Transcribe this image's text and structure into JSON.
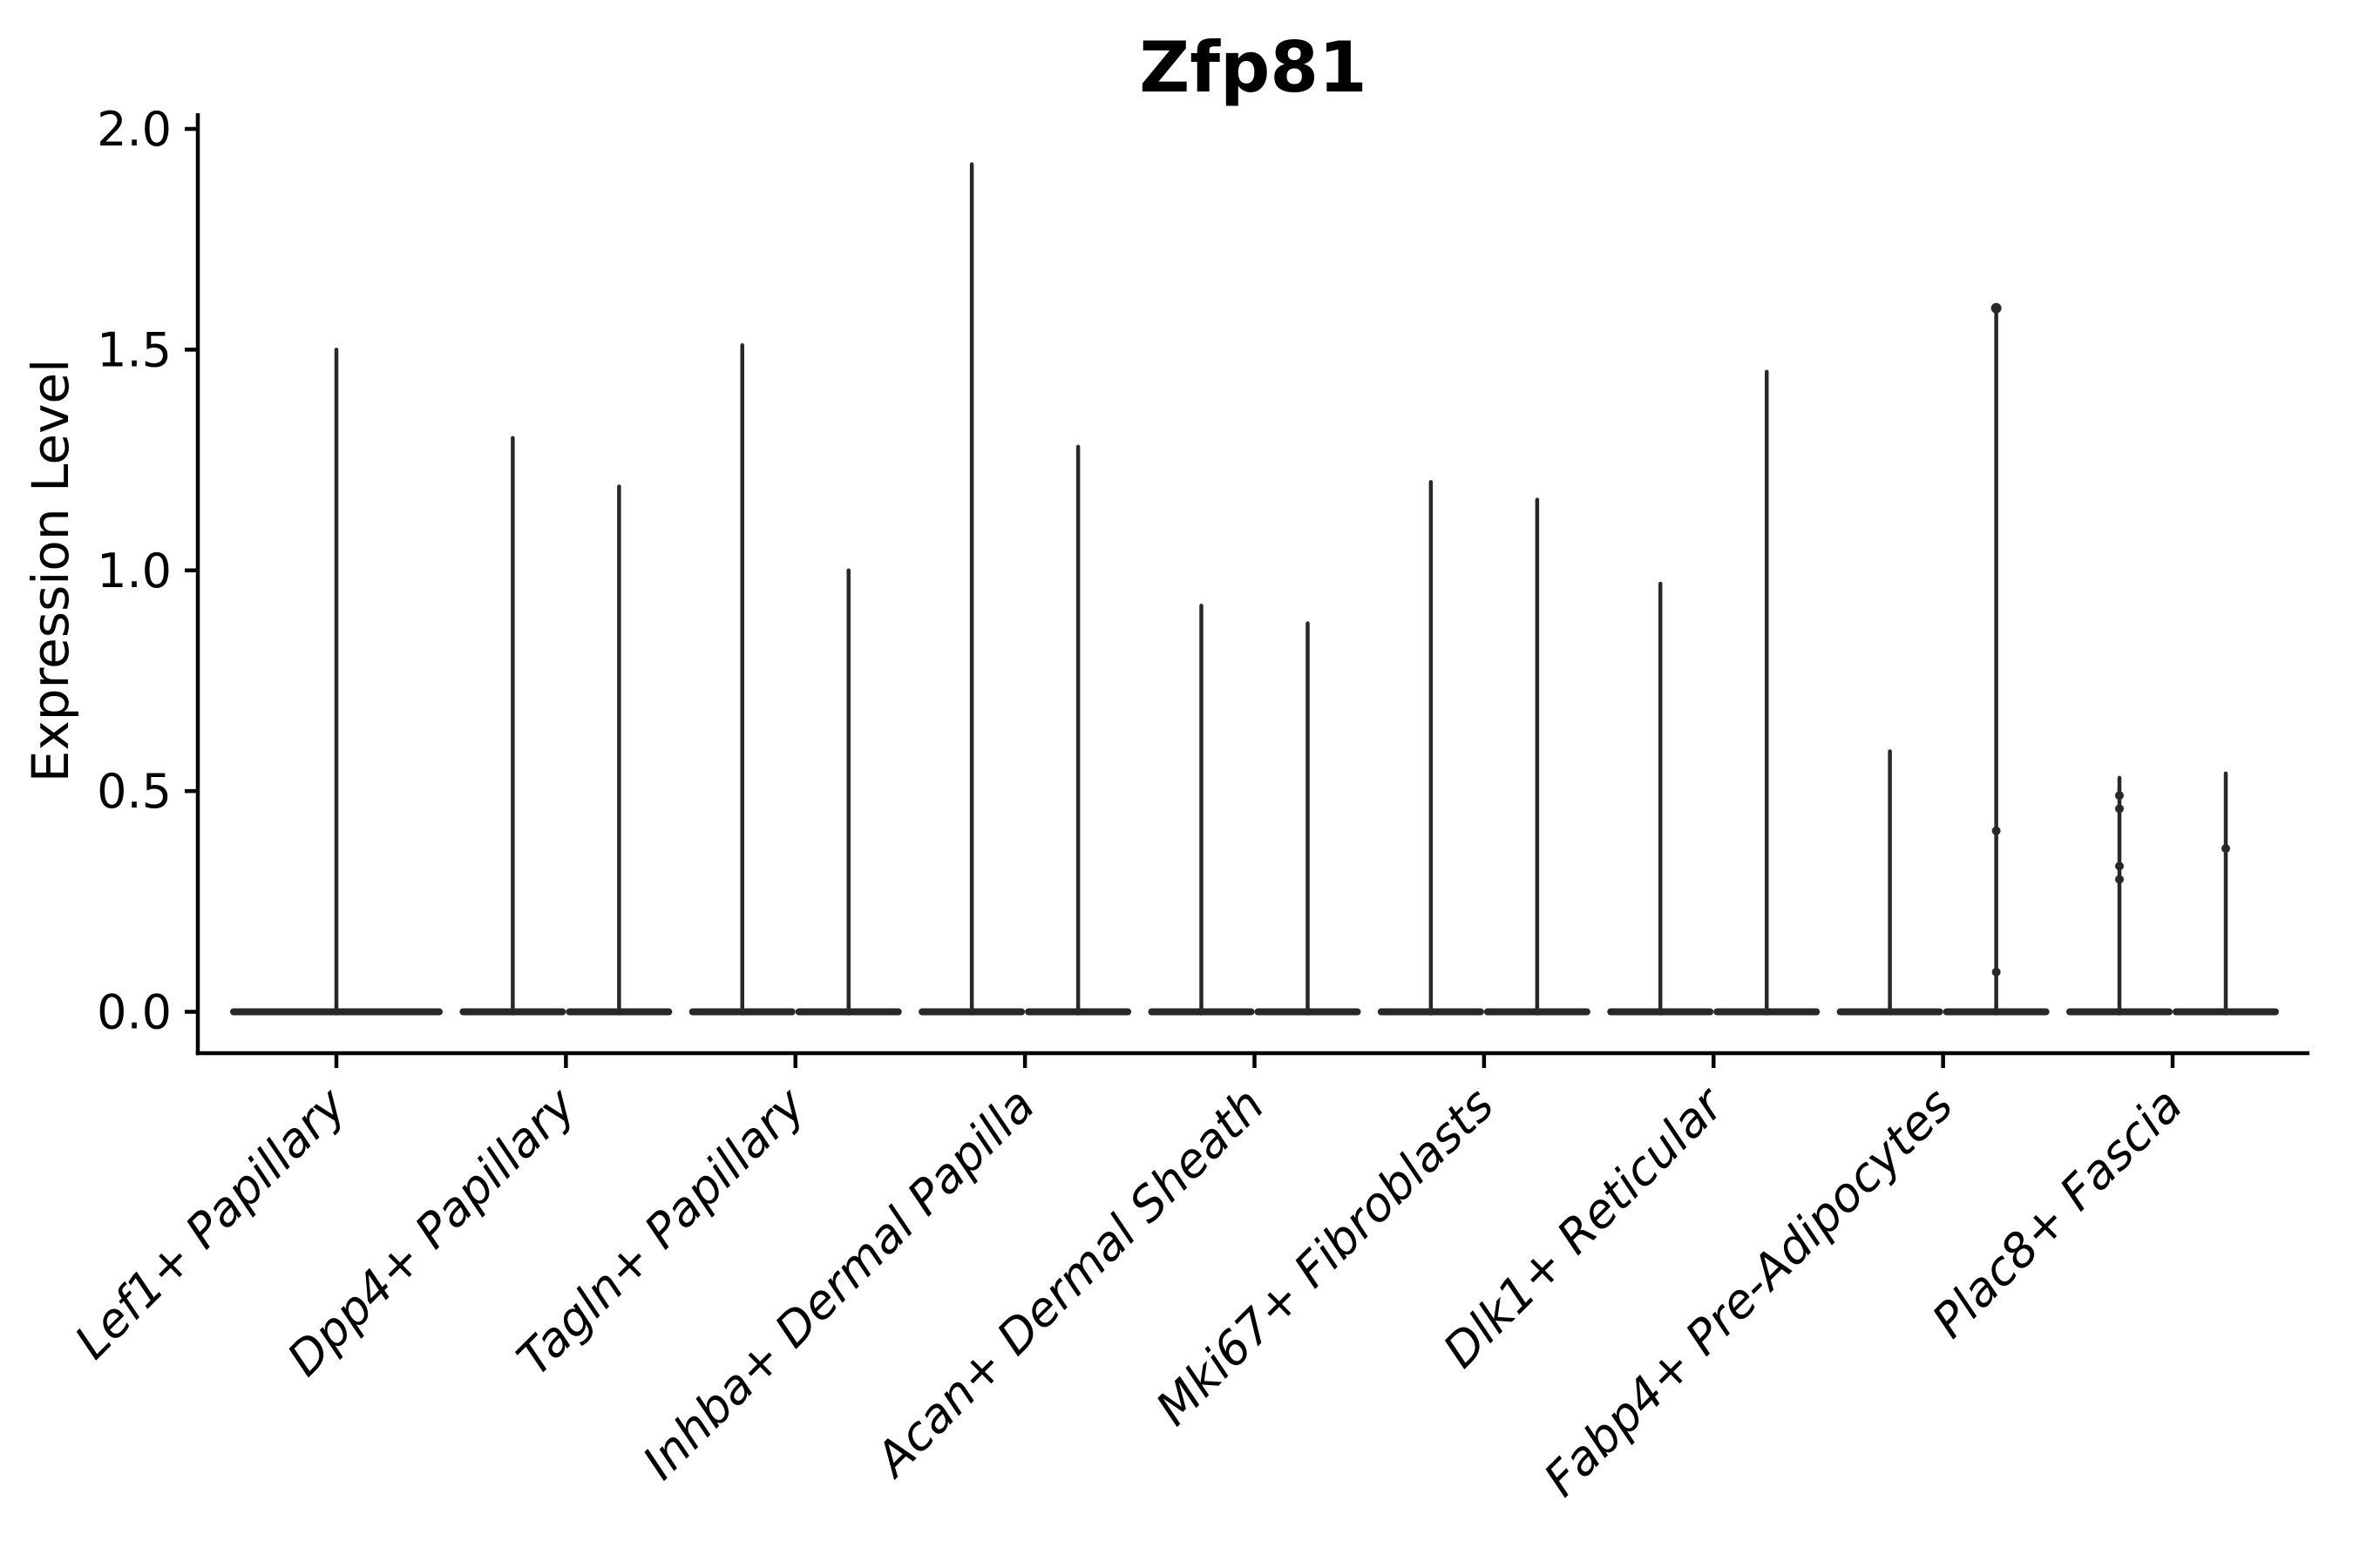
{
  "chart_data": {
    "type": "violin",
    "title": "Zfp81",
    "xlabel": "",
    "ylabel": "Expression Level",
    "ylim": [
      0,
      2
    ],
    "yticks": [
      {
        "value": 2.0,
        "label": "2.0"
      },
      {
        "value": 1.5,
        "label": "1.5"
      },
      {
        "value": 1.0,
        "label": "1.0"
      },
      {
        "value": 0.5,
        "label": "0.5"
      },
      {
        "value": 0.0,
        "label": "0.0"
      }
    ],
    "grid": "off",
    "legend": "none",
    "categories": [
      "Lef1+ Papillary",
      "Dpp4+ Papillary",
      "Tagln+ Papillary",
      "Inhba+ Dermal Papilla",
      "Acan+ Dermal Sheath",
      "Mki67+ Fibroblasts",
      "Dlk1+ Reticular",
      "Fabp4+ Pre-Adipocytes",
      "Plac8+ Fascia"
    ],
    "violins": [
      {
        "category": "Lef1+ Papillary",
        "spikes": [
          {
            "max": 1.5,
            "dots": []
          }
        ]
      },
      {
        "category": "Dpp4+ Papillary",
        "spikes": [
          {
            "max": 1.3,
            "dots": []
          },
          {
            "max": 1.19,
            "dots": []
          }
        ]
      },
      {
        "category": "Tagln+ Papillary",
        "spikes": [
          {
            "max": 1.51,
            "dots": []
          },
          {
            "max": 1.0,
            "dots": []
          }
        ]
      },
      {
        "category": "Inhba+ Dermal Papilla",
        "spikes": [
          {
            "max": 1.92,
            "dots": []
          },
          {
            "max": 1.28,
            "dots": []
          }
        ]
      },
      {
        "category": "Acan+ Dermal Sheath",
        "spikes": [
          {
            "max": 0.92,
            "dots": []
          },
          {
            "max": 0.88,
            "dots": []
          }
        ]
      },
      {
        "category": "Mki67+ Fibroblasts",
        "spikes": [
          {
            "max": 1.2,
            "dots": []
          },
          {
            "max": 1.16,
            "dots": []
          }
        ]
      },
      {
        "category": "Dlk1+ Reticular",
        "spikes": [
          {
            "max": 0.97,
            "dots": []
          },
          {
            "max": 1.45,
            "dots": []
          }
        ]
      },
      {
        "category": "Fabp4+ Pre-Adipocytes",
        "spikes": [
          {
            "max": 0.59,
            "dots": []
          },
          {
            "max": 1.6,
            "dots": [
              0.41,
              0.09
            ],
            "tip_dot": true
          }
        ]
      },
      {
        "category": "Plac8+ Fascia",
        "spikes": [
          {
            "max": 0.53,
            "dots": [
              0.49,
              0.46,
              0.33,
              0.3
            ]
          },
          {
            "max": 0.54,
            "dots": [
              0.37
            ]
          }
        ]
      }
    ],
    "description": "Violin plot of single-cell expression; most cells at 0 produce wide flat bases with thin spikes up to the max expressing cells.",
    "colors": {
      "violin": "#282828",
      "axis": "#000000",
      "text": "#000000",
      "background": "#ffffff"
    }
  }
}
